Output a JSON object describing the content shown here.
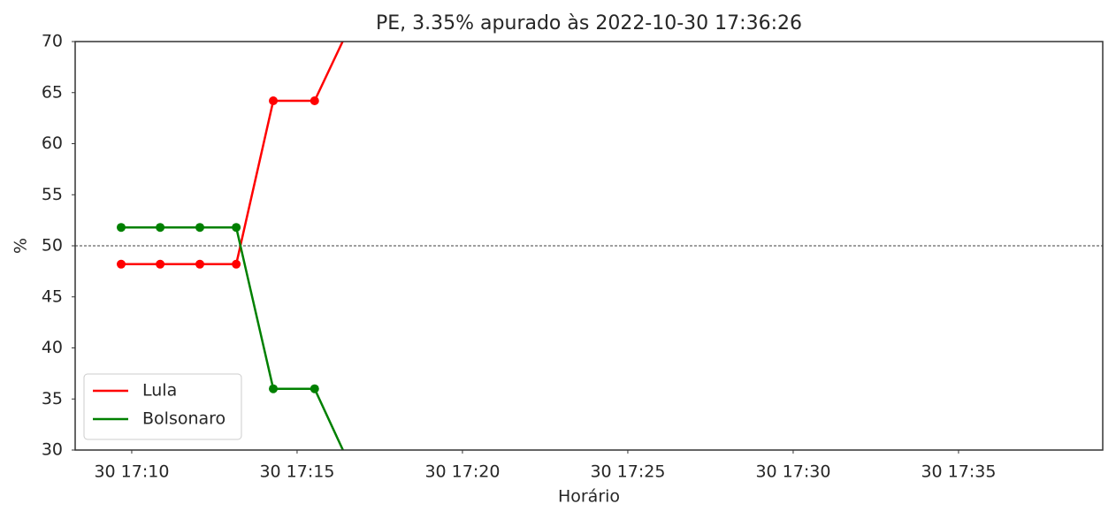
{
  "chart_data": {
    "type": "line",
    "title": "PE, 3.35% apurado às 2022-10-30 17:36:26",
    "xlabel": "Horário",
    "ylabel": "%",
    "x": [
      9.68,
      10.86,
      12.06,
      13.16,
      14.28,
      15.53,
      16.8
    ],
    "series": [
      {
        "name": "Lula",
        "color": "#ff0000",
        "values": [
          48.2,
          48.2,
          48.2,
          48.2,
          64.2,
          64.2,
          72.9
        ]
      },
      {
        "name": "Bolsonaro",
        "color": "#008000",
        "values": [
          51.8,
          51.8,
          51.8,
          51.8,
          36.0,
          36.0,
          27.1
        ]
      }
    ],
    "xlim": [
      8.29,
      39.36
    ],
    "xticks": [
      {
        "value": 10,
        "label": "30 17:10"
      },
      {
        "value": 15,
        "label": "30 17:15"
      },
      {
        "value": 20,
        "label": "30 17:20"
      },
      {
        "value": 25,
        "label": "30 17:25"
      },
      {
        "value": 30,
        "label": "30 17:30"
      },
      {
        "value": 35,
        "label": "30 17:35"
      }
    ],
    "ylim": [
      30,
      70
    ],
    "yticks": [
      30,
      35,
      40,
      45,
      50,
      55,
      60,
      65,
      70
    ],
    "hline": 50,
    "legend": "lower left"
  }
}
